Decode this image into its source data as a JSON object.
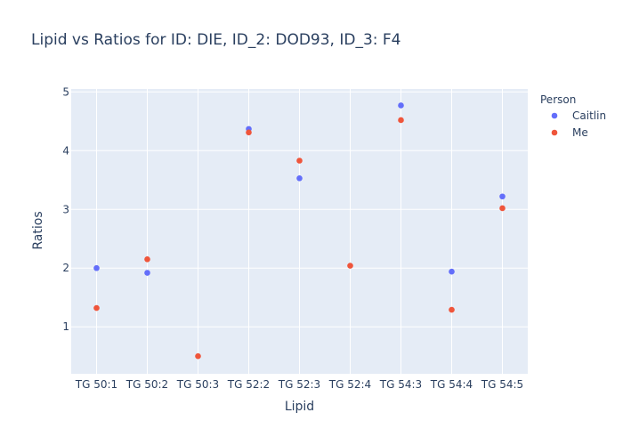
{
  "chart_data": {
    "type": "scatter",
    "title": "Lipid vs Ratios for ID: DIE, ID_2: DOD93, ID_3: F4",
    "xlabel": "Lipid",
    "ylabel": "Ratios",
    "categories": [
      "TG 50:1",
      "TG 50:2",
      "TG 50:3",
      "TG 52:2",
      "TG 52:3",
      "TG 52:4",
      "TG 54:3",
      "TG 54:4",
      "TG 54:5"
    ],
    "ylim": [
      0.2,
      5.05
    ],
    "yticks": [
      1,
      2,
      3,
      4,
      5
    ],
    "grid": true,
    "legend": {
      "title": "Person",
      "placement": "top-right"
    },
    "series": [
      {
        "name": "Caitlin",
        "color": "#636efa",
        "points": [
          {
            "x": "TG 50:1",
            "y": 2.0
          },
          {
            "x": "TG 50:2",
            "y": 1.92
          },
          {
            "x": "TG 52:2",
            "y": 4.37
          },
          {
            "x": "TG 52:3",
            "y": 3.53
          },
          {
            "x": "TG 54:3",
            "y": 4.77
          },
          {
            "x": "TG 54:4",
            "y": 1.94
          },
          {
            "x": "TG 54:5",
            "y": 3.22
          }
        ]
      },
      {
        "name": "Me",
        "color": "#ef553b",
        "points": [
          {
            "x": "TG 50:1",
            "y": 1.32
          },
          {
            "x": "TG 50:2",
            "y": 2.15
          },
          {
            "x": "TG 50:3",
            "y": 0.5
          },
          {
            "x": "TG 52:2",
            "y": 4.31
          },
          {
            "x": "TG 52:3",
            "y": 3.83
          },
          {
            "x": "TG 52:4",
            "y": 2.04
          },
          {
            "x": "TG 54:3",
            "y": 4.52
          },
          {
            "x": "TG 54:4",
            "y": 1.29
          },
          {
            "x": "TG 54:5",
            "y": 3.02
          }
        ]
      }
    ]
  },
  "colors": {
    "plot_background": "#e5ecf6",
    "grid": "#ffffff",
    "text": "#2a3f5f"
  }
}
